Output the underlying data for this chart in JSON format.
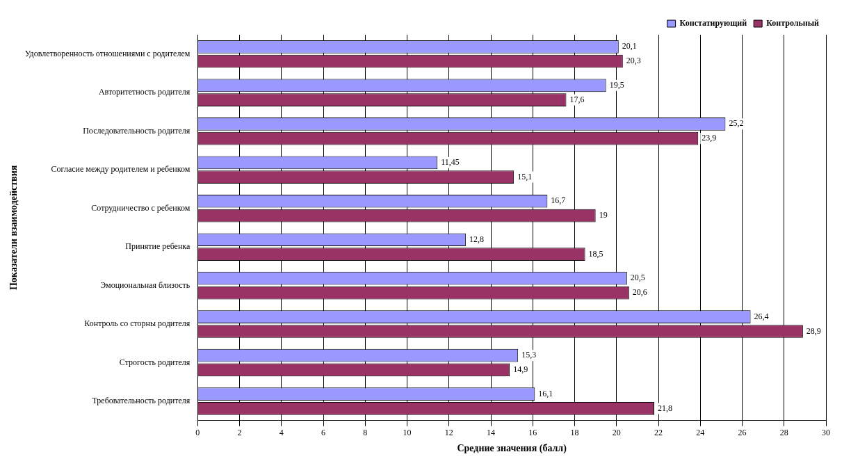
{
  "chart_data": {
    "type": "bar",
    "orientation": "horizontal",
    "xlabel": "Средние значения (балл)",
    "ylabel": "Показатели взаимодействия",
    "categories": [
      "Удовлетворенность отношениями с родителем",
      "Авторитетность родителя",
      "Последовательность родителя",
      "Согласие между родителем и ребенком",
      "Сотрудничество с ребенком",
      "Принятие ребенка",
      "Эмоциональная близость",
      "Контроль со сторны родителя",
      "Строгость родителя",
      "Требовательность родителя"
    ],
    "series": [
      {
        "name": "Констатирующий",
        "color": "#9999ff",
        "values": [
          20.1,
          19.5,
          25.2,
          11.45,
          16.7,
          12.8,
          20.5,
          26.4,
          15.3,
          16.1
        ],
        "value_labels": [
          "20,1",
          "19,5",
          "25,2",
          "11,45",
          "16,7",
          "12,8",
          "20,5",
          "26,4",
          "15,3",
          "16,1"
        ]
      },
      {
        "name": "Контрольный",
        "color": "#993366",
        "values": [
          20.3,
          17.6,
          23.9,
          15.1,
          19,
          18.5,
          20.6,
          28.9,
          14.9,
          21.8
        ],
        "value_labels": [
          "20,3",
          "17,6",
          "23,9",
          "15,1",
          "19",
          "18,5",
          "20,6",
          "28,9",
          "14,9",
          "21,8"
        ]
      }
    ],
    "xlim": [
      0,
      30
    ],
    "xticks": [
      0,
      2,
      4,
      6,
      8,
      10,
      12,
      14,
      16,
      18,
      20,
      22,
      24,
      26,
      28,
      30
    ],
    "grid": "x",
    "legend": "top right"
  }
}
